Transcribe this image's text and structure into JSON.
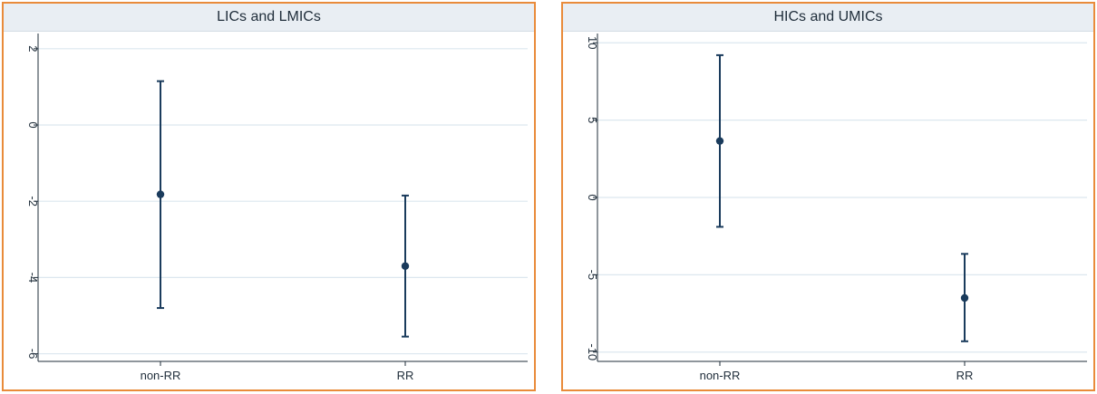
{
  "chart_data": [
    {
      "type": "scatter",
      "title": "LICs and LMICs",
      "categories": [
        "non-RR",
        "RR"
      ],
      "series": [
        {
          "estimates": [
            -1.82,
            -3.7
          ],
          "ci_low": [
            -4.8,
            -5.55
          ],
          "ci_high": [
            1.15,
            -1.85
          ]
        }
      ],
      "ylim": [
        -6.2,
        2.4
      ],
      "yticks": [
        2,
        0,
        -2,
        -4,
        -6
      ],
      "ytick_labels": [
        "2",
        "0",
        "-2",
        "-4",
        "-6"
      ],
      "xlabel": "",
      "ylabel": "",
      "grid": true,
      "colors": {
        "marker": "#1a3b5c",
        "grid": "#dce7ef",
        "background": "#e9eef3"
      }
    },
    {
      "type": "scatter",
      "title": "HICs and UMICs",
      "categories": [
        "non-RR",
        "RR"
      ],
      "series": [
        {
          "estimates": [
            3.65,
            -6.5
          ],
          "ci_low": [
            -1.9,
            -9.3
          ],
          "ci_high": [
            9.2,
            -3.65
          ]
        }
      ],
      "ylim": [
        -10.6,
        10.6
      ],
      "yticks": [
        10,
        5,
        0,
        -5,
        -10
      ],
      "ytick_labels": [
        "10",
        "5",
        "0",
        "-5",
        "-10"
      ],
      "xlabel": "",
      "ylabel": "",
      "grid": true,
      "colors": {
        "marker": "#1a3b5c",
        "grid": "#dce7ef",
        "background": "#e9eef3"
      }
    }
  ]
}
